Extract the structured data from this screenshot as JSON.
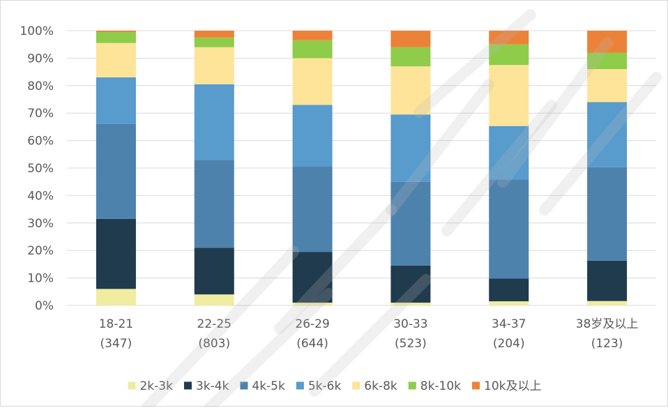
{
  "chart_data": {
    "type": "bar",
    "stacked": true,
    "percent_stacked": true,
    "title": "",
    "xlabel": "",
    "ylabel": "",
    "ylim": [
      0,
      100
    ],
    "y_ticks": [
      "0%",
      "10%",
      "20%",
      "30%",
      "40%",
      "50%",
      "60%",
      "70%",
      "80%",
      "90%",
      "100%"
    ],
    "grid": true,
    "legend_position": "bottom",
    "categories": [
      [
        "18-21",
        "(347)"
      ],
      [
        "22-25",
        "(803)"
      ],
      [
        "26-29",
        "(644)"
      ],
      [
        "30-33",
        "(523)"
      ],
      [
        "34-37",
        "(204)"
      ],
      [
        "38岁及以上",
        "(123)"
      ]
    ],
    "series": [
      {
        "name": "2k-3k",
        "color": "#f0eca0",
        "values": [
          6,
          4,
          1,
          1,
          1.5,
          1.6
        ]
      },
      {
        "name": "3k-4k",
        "color": "#203a4e",
        "values": [
          25.5,
          17,
          18.5,
          13.5,
          8.3,
          14.7
        ]
      },
      {
        "name": "4k-5k",
        "color": "#4d82ad",
        "values": [
          34.5,
          32,
          31,
          30.5,
          36,
          34
        ]
      },
      {
        "name": "5k-6k",
        "color": "#589bcd",
        "values": [
          17,
          27.5,
          22.5,
          24.5,
          19.5,
          23.7
        ]
      },
      {
        "name": "6k-8k",
        "color": "#fee499",
        "values": [
          12.5,
          13.5,
          17,
          17.5,
          22.2,
          12
        ]
      },
      {
        "name": "8k-10k",
        "color": "#8fcc4a",
        "values": [
          4,
          3.5,
          6.5,
          7,
          7.5,
          6
        ]
      },
      {
        "name": "10k及以上",
        "color": "#ec8238",
        "values": [
          0.5,
          2.5,
          3.5,
          6,
          5,
          8
        ]
      }
    ]
  },
  "watermark": {
    "text": "鹏 程 研",
    "color": "#bbbbbb"
  }
}
